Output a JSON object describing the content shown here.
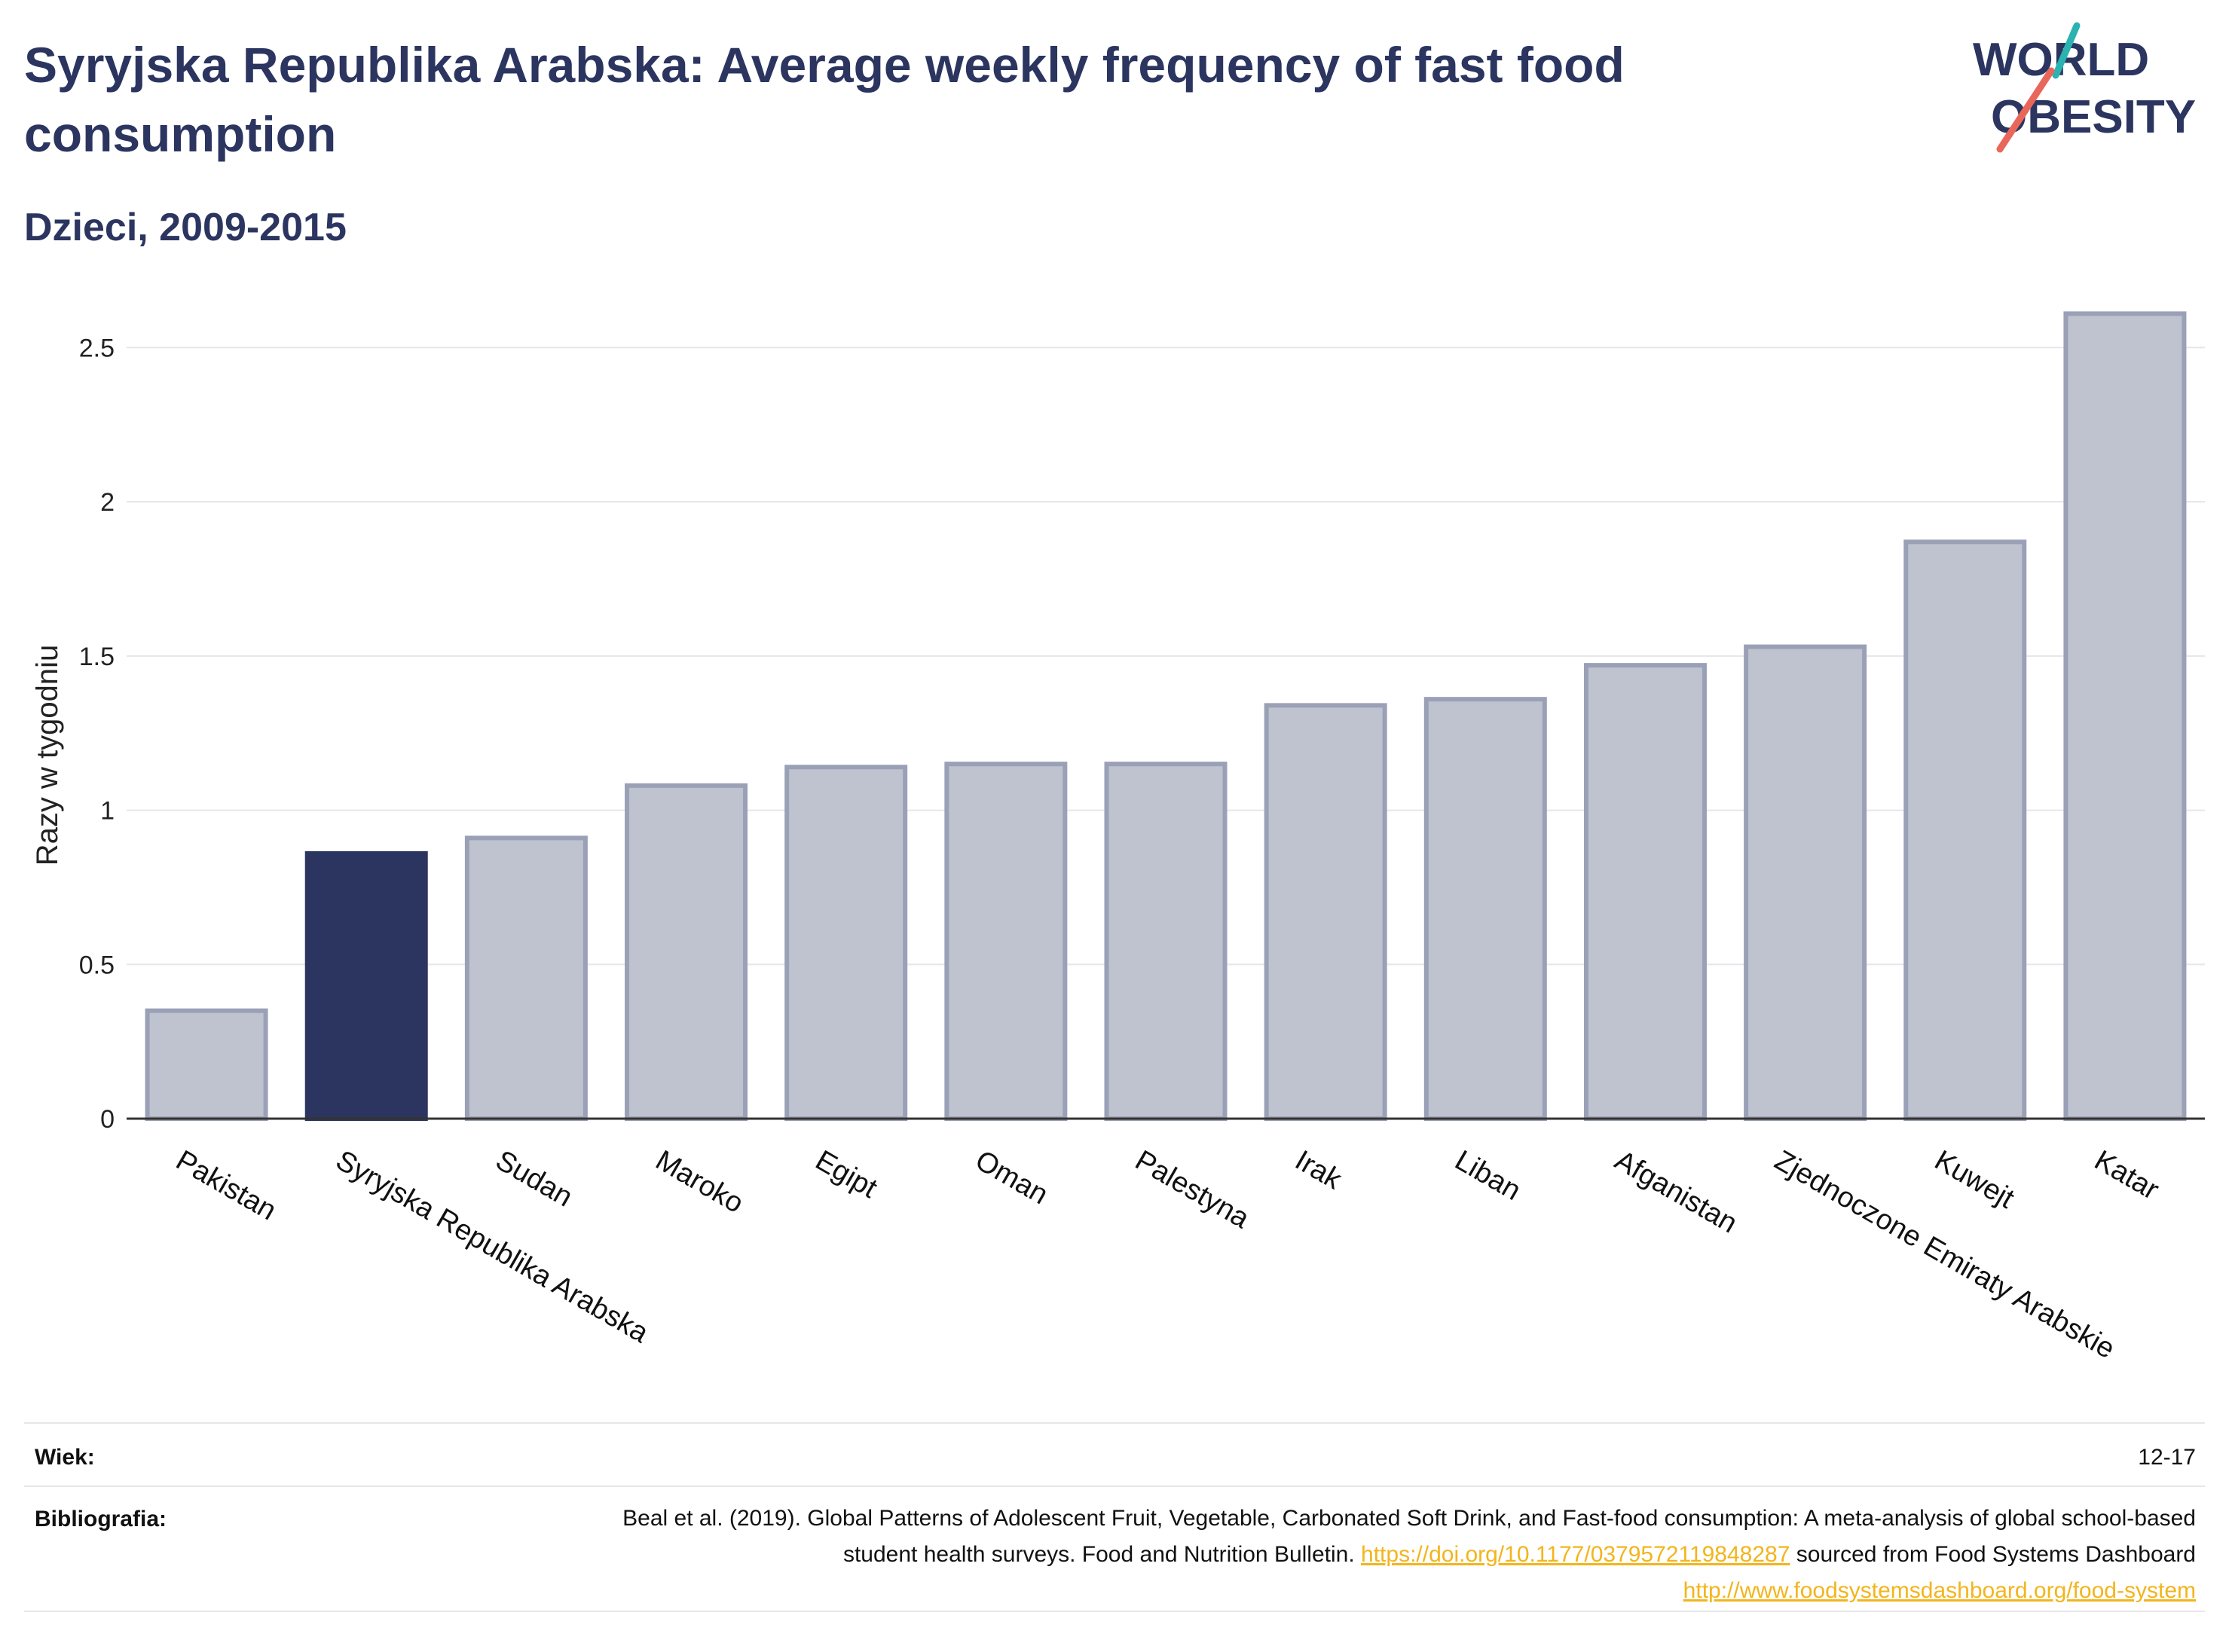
{
  "header": {
    "title": "Syryjska Republika Arabska: Average weekly frequency of fast food consumption",
    "subtitle": "Dzieci, 2009-2015"
  },
  "logo": {
    "line1": "WORLD",
    "line2": "OBESITY",
    "accent_teal": "#2bb3b1",
    "accent_red": "#e8675a"
  },
  "colors": {
    "highlight": "#2b3560",
    "bar_fill": "#bfc2cf",
    "bar_stroke": "#9aa0b6",
    "axis": "#333333",
    "grid": "#e6e6ea"
  },
  "chart_data": {
    "type": "bar",
    "ylabel": "Razy w tygodniu",
    "ylim": [
      0,
      2.65
    ],
    "yticks": [
      0,
      0.5,
      1,
      1.5,
      2,
      2.5
    ],
    "ytick_labels": [
      "0",
      "0.5",
      "1",
      "1.5",
      "2",
      "2.5"
    ],
    "grid": true,
    "highlight_index": 1,
    "categories": [
      "Pakistan",
      "Syryjska Republika Arabska",
      "Sudan",
      "Maroko",
      "Egipt",
      "Oman",
      "Palestyna",
      "Irak",
      "Liban",
      "Afganistan",
      "Zjednoczone Emiraty Arabskie",
      "Kuwejt",
      "Katar"
    ],
    "values": [
      0.35,
      0.86,
      0.91,
      1.08,
      1.14,
      1.15,
      1.15,
      1.34,
      1.36,
      1.47,
      1.53,
      1.87,
      2.61
    ]
  },
  "footer": {
    "age_label": "Wiek:",
    "age_value": "12-17",
    "biblio_label": "Bibliografia:",
    "biblio_text1": "Beal et al. (2019). Global Patterns of Adolescent Fruit, Vegetable, Carbonated Soft Drink, and Fast-food consumption: A meta-analysis of global school-based student health surveys. Food and Nutrition Bulletin.",
    "biblio_link1": "https://doi.org/10.1177/0379572119848287",
    "biblio_text2": "sourced from Food Systems Dashboard",
    "biblio_link2": "http://www.foodsystemsdashboard.org/food-system"
  }
}
